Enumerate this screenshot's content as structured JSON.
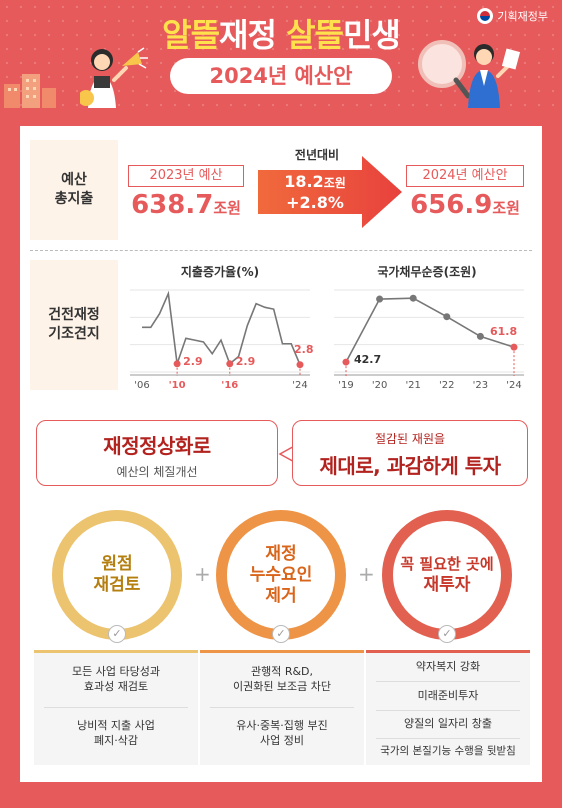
{
  "header": {
    "title_part1": "알뜰",
    "title_part2": "재정",
    "title_part3": "살뜰",
    "title_part4": "민생",
    "subtitle": "2024년 예산안",
    "ministry": "기획재정부",
    "colors": {
      "background": "#e65a5b",
      "highlight": "#ffe14d"
    }
  },
  "total": {
    "label_line1": "예산",
    "label_line2": "총지출",
    "budget_2023_label": "2023년 예산",
    "budget_2023_value": "638.7",
    "budget_2023_unit": "조원",
    "change_label": "전년대비",
    "change_amount": "18.2",
    "change_amount_unit": "조원",
    "change_percent": "+2.8%",
    "budget_2024_label": "2024년 예산안",
    "budget_2024_value": "656.9",
    "budget_2024_unit": "조원"
  },
  "soundness": {
    "label_line1": "건전재정",
    "label_line2": "기조견지"
  },
  "chart_data": [
    {
      "type": "line",
      "title": "지출증가율(%)",
      "x": [
        2006,
        2007,
        2008,
        2009,
        2010,
        2011,
        2012,
        2013,
        2014,
        2015,
        2016,
        2017,
        2018,
        2019,
        2020,
        2021,
        2022,
        2023,
        2024
      ],
      "y": [
        6.9,
        6.9,
        8.4,
        10.6,
        2.9,
        5.7,
        5.5,
        5.3,
        4.0,
        5.5,
        2.9,
        3.7,
        7.1,
        9.5,
        9.1,
        8.9,
        5.1,
        5.1,
        2.8
      ],
      "tick_labels": [
        "'06",
        "'10",
        "'16",
        "'24"
      ],
      "point_labels": [
        {
          "x": 2010,
          "label": "2.9"
        },
        {
          "x": 2016,
          "label": "2.9"
        },
        {
          "x": 2024,
          "label": "2.8"
        }
      ],
      "colors": {
        "line": "#777777",
        "highlight": "#e65a5b"
      }
    },
    {
      "type": "line",
      "title": "국가채무순증(조원)",
      "x": [
        2019,
        2020,
        2021,
        2022,
        2023,
        2024
      ],
      "y": [
        42.7,
        123.4,
        124.5,
        100.8,
        75.6,
        61.8
      ],
      "tick_labels": [
        "'19",
        "'20",
        "'21",
        "'22",
        "'23",
        "'24"
      ],
      "point_labels": [
        {
          "x": 2019,
          "label": "42.7"
        },
        {
          "x": 2024,
          "label": "61.8"
        }
      ],
      "colors": {
        "line": "#777777",
        "highlight": "#e65a5b"
      }
    }
  ],
  "theme_left": {
    "title": "재정정상화로",
    "subtitle": "예산의 체질개선"
  },
  "theme_right": {
    "subtitle": "절감된 재원을",
    "title": "제대로, 과감하게 투자"
  },
  "pillars": [
    {
      "circle_text_line1": "원점",
      "circle_text_line2": "재검토",
      "color": "#ecc36f",
      "items": [
        "모든 사업 타당성과\n효과성 재검토",
        "낭비적 지출 사업\n폐지·삭감"
      ]
    },
    {
      "circle_text_line1": "재정",
      "circle_text_line2": "누수요인",
      "circle_text_line3": "제거",
      "color": "#ee9446",
      "items": [
        "관행적 R&D,\n이권화된 보조금 차단",
        "유사·중복·집행 부진\n사업 정비"
      ]
    },
    {
      "circle_text_line1": "꼭 필요한 곳에",
      "circle_text_line2": "재투자",
      "color": "#e2604f",
      "items": [
        "약자복지 강화",
        "미래준비투자",
        "양질의 일자리 창출",
        "국가의 본질기능 수행을 뒷받침"
      ]
    }
  ]
}
